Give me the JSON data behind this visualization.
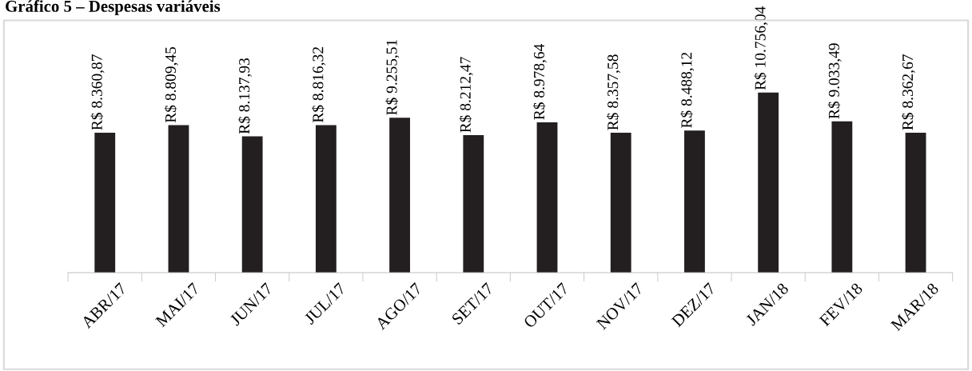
{
  "chart_data": {
    "type": "bar",
    "title": "Gráfico 5 – Despesas variáveis",
    "categories": [
      "ABR/17",
      "MAI/17",
      "JUN/17",
      "JUL/17",
      "AGO/17",
      "SET/17",
      "OUT/17",
      "NOV/17",
      "DEZ/17",
      "JAN/18",
      "FEV/18",
      "MAR/18"
    ],
    "values": [
      8360.87,
      8809.45,
      8137.93,
      8816.32,
      9255.51,
      8212.47,
      8978.64,
      8357.58,
      8488.12,
      10756.04,
      9033.49,
      8362.67
    ],
    "value_labels": [
      "R$ 8.360,87",
      "R$ 8.809,45",
      "R$ 8.137,93",
      "R$ 8.816,32",
      "R$ 9.255,51",
      "R$ 8.212,47",
      "R$ 8.978,64",
      "R$ 8.357,58",
      "R$ 8.488,12",
      "R$ 10.756,04",
      "R$ 9.033,49",
      "R$ 8.362,67"
    ],
    "color": "#231f20",
    "tick_labels": "x",
    "grid": false,
    "legend": false
  }
}
